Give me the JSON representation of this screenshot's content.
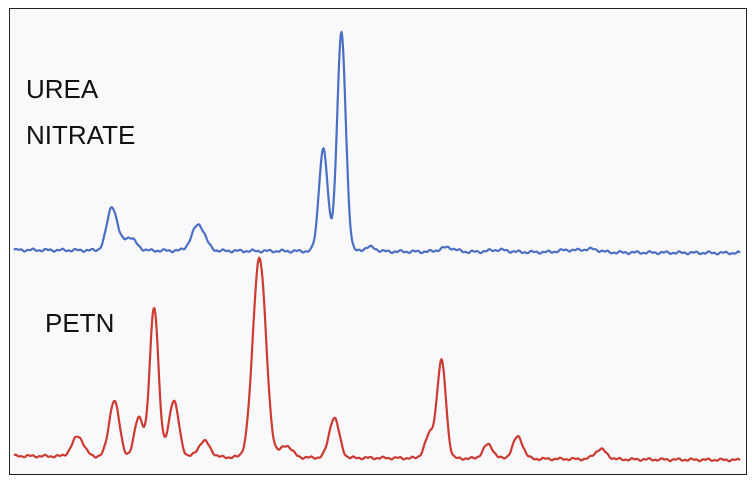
{
  "chart_data": {
    "type": "line",
    "title": "",
    "xlabel": "",
    "ylabel": "",
    "grid": false,
    "legend": "none",
    "xlim": [
      0,
      100
    ],
    "series": [
      {
        "name": "UREA NITRATE",
        "label_lines": [
          "UREA",
          "NITRATE"
        ],
        "color": "#4a6fc4",
        "baseline": 0.0,
        "peaks": [
          {
            "x": 13.5,
            "h": 0.2,
            "w": 0.7
          },
          {
            "x": 15.9,
            "h": 0.06,
            "w": 0.9
          },
          {
            "x": 25.4,
            "h": 0.12,
            "w": 0.9
          },
          {
            "x": 42.6,
            "h": 0.47,
            "w": 0.6
          },
          {
            "x": 45.1,
            "h": 1.0,
            "w": 0.6
          },
          {
            "x": 49.0,
            "h": 0.02,
            "w": 0.8
          },
          {
            "x": 59.7,
            "h": 0.02,
            "w": 1.0
          },
          {
            "x": 66.7,
            "h": 0.01,
            "w": 1.2
          },
          {
            "x": 76.2,
            "h": 0.01,
            "w": 1.2
          },
          {
            "x": 79.4,
            "h": 0.015,
            "w": 1.2
          }
        ]
      },
      {
        "name": "PETN",
        "label_lines": [
          "PETN"
        ],
        "color": "#cc3a32",
        "baseline": 0.0,
        "peaks": [
          {
            "x": 8.8,
            "h": 0.1,
            "w": 0.8
          },
          {
            "x": 13.8,
            "h": 0.28,
            "w": 0.7
          },
          {
            "x": 17.2,
            "h": 0.2,
            "w": 0.6
          },
          {
            "x": 19.3,
            "h": 0.75,
            "w": 0.6
          },
          {
            "x": 22.0,
            "h": 0.28,
            "w": 0.7
          },
          {
            "x": 26.2,
            "h": 0.08,
            "w": 0.8
          },
          {
            "x": 33.8,
            "h": 1.0,
            "w": 0.9
          },
          {
            "x": 37.5,
            "h": 0.06,
            "w": 0.8
          },
          {
            "x": 44.1,
            "h": 0.2,
            "w": 0.7
          },
          {
            "x": 57.3,
            "h": 0.12,
            "w": 0.7
          },
          {
            "x": 58.9,
            "h": 0.48,
            "w": 0.6
          },
          {
            "x": 65.3,
            "h": 0.07,
            "w": 0.7
          },
          {
            "x": 69.4,
            "h": 0.11,
            "w": 0.7
          },
          {
            "x": 80.8,
            "h": 0.05,
            "w": 0.8
          }
        ]
      }
    ]
  }
}
